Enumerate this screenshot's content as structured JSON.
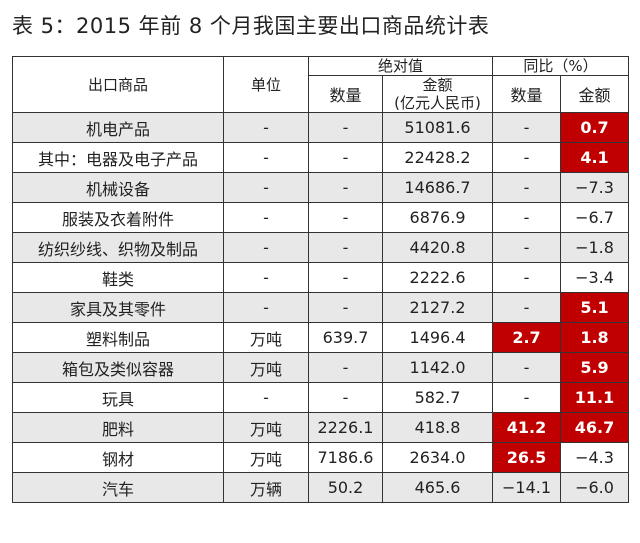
{
  "title": "表 5：2015 年前 8 个月我国主要出口商品统计表",
  "header": {
    "product": "出口商品",
    "unit": "单位",
    "absolute": "绝对值",
    "yoy": "同比（%）",
    "quantity": "数量",
    "amount_line1": "金额",
    "amount_line2": "(亿元人民币)",
    "yoy_quantity": "数量",
    "yoy_amount": "金额"
  },
  "rows": [
    {
      "name": "机电产品",
      "unit": "-",
      "qty": "-",
      "amount": "51081.6",
      "yoy_qty": "-",
      "yoy_amt": "0.7",
      "shade": "gray",
      "qty_hl": false,
      "amt_hl": true
    },
    {
      "name": "其中：电器及电子产品",
      "unit": "-",
      "qty": "-",
      "amount": "22428.2",
      "yoy_qty": "-",
      "yoy_amt": "4.1",
      "shade": "white",
      "qty_hl": false,
      "amt_hl": true
    },
    {
      "name": "机械设备",
      "unit": "-",
      "qty": "-",
      "amount": "14686.7",
      "yoy_qty": "-",
      "yoy_amt": "−7.3",
      "shade": "gray",
      "qty_hl": false,
      "amt_hl": false
    },
    {
      "name": "服装及衣着附件",
      "unit": "-",
      "qty": "-",
      "amount": "6876.9",
      "yoy_qty": "-",
      "yoy_amt": "−6.7",
      "shade": "white",
      "qty_hl": false,
      "amt_hl": false
    },
    {
      "name": "纺织纱线、织物及制品",
      "unit": "-",
      "qty": "-",
      "amount": "4420.8",
      "yoy_qty": "-",
      "yoy_amt": "−1.8",
      "shade": "gray",
      "qty_hl": false,
      "amt_hl": false
    },
    {
      "name": "鞋类",
      "unit": "-",
      "qty": "-",
      "amount": "2222.6",
      "yoy_qty": "-",
      "yoy_amt": "−3.4",
      "shade": "white",
      "qty_hl": false,
      "amt_hl": false
    },
    {
      "name": "家具及其零件",
      "unit": "-",
      "qty": "-",
      "amount": "2127.2",
      "yoy_qty": "-",
      "yoy_amt": "5.1",
      "shade": "gray",
      "qty_hl": false,
      "amt_hl": true
    },
    {
      "name": "塑料制品",
      "unit": "万吨",
      "qty": "639.7",
      "amount": "1496.4",
      "yoy_qty": "2.7",
      "yoy_amt": "1.8",
      "shade": "white",
      "qty_hl": true,
      "amt_hl": true
    },
    {
      "name": "箱包及类似容器",
      "unit": "万吨",
      "qty": "-",
      "amount": "1142.0",
      "yoy_qty": "-",
      "yoy_amt": "5.9",
      "shade": "gray",
      "qty_hl": false,
      "amt_hl": true
    },
    {
      "name": "玩具",
      "unit": "-",
      "qty": "-",
      "amount": "582.7",
      "yoy_qty": "-",
      "yoy_amt": "11.1",
      "shade": "white",
      "qty_hl": false,
      "amt_hl": true
    },
    {
      "name": "肥料",
      "unit": "万吨",
      "qty": "2226.1",
      "amount": "418.8",
      "yoy_qty": "41.2",
      "yoy_amt": "46.7",
      "shade": "gray",
      "qty_hl": true,
      "amt_hl": true
    },
    {
      "name": "钢材",
      "unit": "万吨",
      "qty": "7186.6",
      "amount": "2634.0",
      "yoy_qty": "26.5",
      "yoy_amt": "−4.3",
      "shade": "white",
      "qty_hl": true,
      "amt_hl": false
    },
    {
      "name": "汽车",
      "unit": "万辆",
      "qty": "50.2",
      "amount": "465.6",
      "yoy_qty": "−14.1",
      "yoy_amt": "−6.0",
      "shade": "gray",
      "qty_hl": false,
      "amt_hl": false
    }
  ],
  "colors": {
    "highlight": "#c00000",
    "row_gray": "#e8e8e8",
    "border": "#333333"
  }
}
